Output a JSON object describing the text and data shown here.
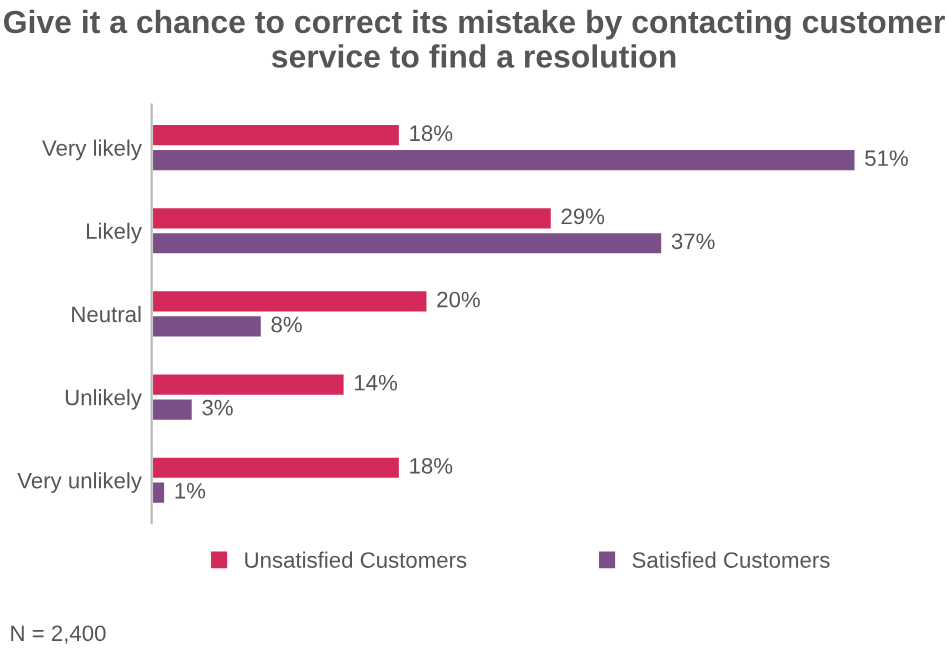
{
  "chart_data": {
    "type": "bar",
    "orientation": "horizontal",
    "title": "Give it a chance to correct its mistake by contacting customer service to find a resolution",
    "categories": [
      "Very likely",
      "Likely",
      "Neutral",
      "Unlikely",
      "Very unlikely"
    ],
    "series": [
      {
        "name": "Unsatisfied Customers",
        "color": "#d42a5b",
        "values": [
          18,
          29,
          20,
          14,
          18
        ],
        "value_labels": [
          "18%",
          "29%",
          "20%",
          "14%",
          "18%"
        ]
      },
      {
        "name": "Satisfied Customers",
        "color": "#7d4f88",
        "values": [
          51,
          37,
          8,
          3,
          1
        ],
        "value_labels": [
          "51%",
          "37%",
          "8%",
          "3%",
          "1%"
        ]
      }
    ],
    "legend": "bottom",
    "grid": false,
    "tick_labels": "y",
    "annotations": [
      "N = 2,400"
    ]
  }
}
